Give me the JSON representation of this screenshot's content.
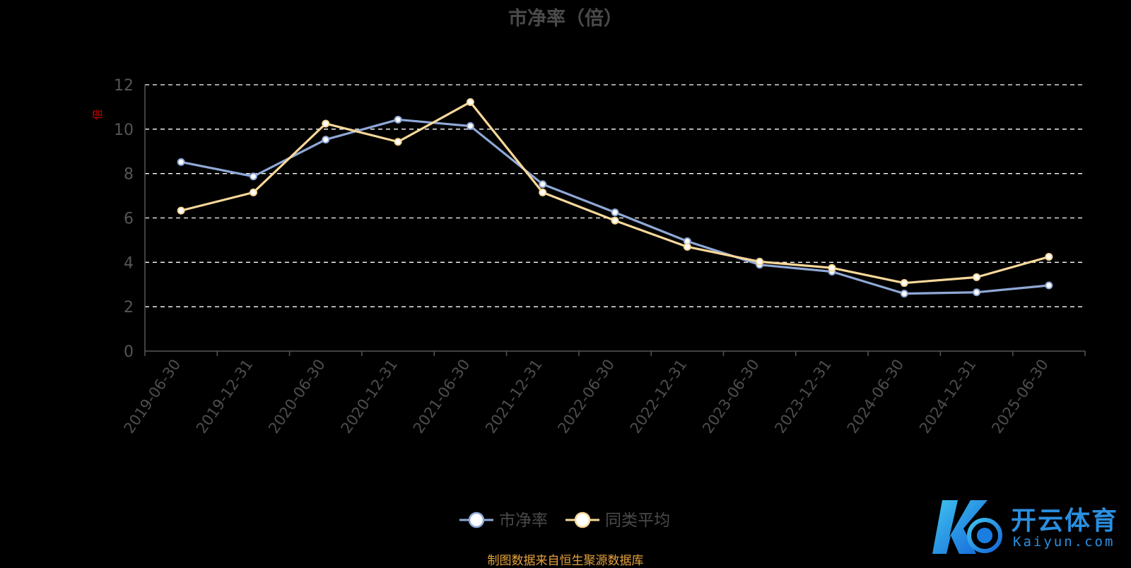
{
  "chart_data": {
    "type": "line",
    "title": "市净率（倍）",
    "ylabel": "倍",
    "ylim": [
      0,
      12
    ],
    "yticks": [
      0,
      2,
      4,
      6,
      8,
      10,
      12
    ],
    "grid": true,
    "legend_position": "bottom",
    "categories": [
      "2019-06-30",
      "2019-12-31",
      "2020-06-30",
      "2020-12-31",
      "2021-06-30",
      "2021-12-31",
      "2022-06-30",
      "2022-12-31",
      "2023-06-30",
      "2023-12-31",
      "2024-06-30",
      "2024-12-31",
      "2025-06-30"
    ],
    "series": [
      {
        "name": "市净率",
        "color": "#8fa8d6",
        "values": [
          8.52,
          7.87,
          9.53,
          10.43,
          10.14,
          7.52,
          6.25,
          4.95,
          3.89,
          3.58,
          2.59,
          2.65,
          2.96
        ]
      },
      {
        "name": "同类平均",
        "color": "#f8d89a",
        "values": [
          6.33,
          7.15,
          10.25,
          9.43,
          11.22,
          7.15,
          5.88,
          4.7,
          4.03,
          3.75,
          3.07,
          3.33,
          4.25
        ]
      }
    ]
  },
  "footer": {
    "source": "制图数据来自恒生聚源数据库"
  },
  "watermark": {
    "brand_cn": "开云体育",
    "brand_en": "Kaiyun.com"
  }
}
